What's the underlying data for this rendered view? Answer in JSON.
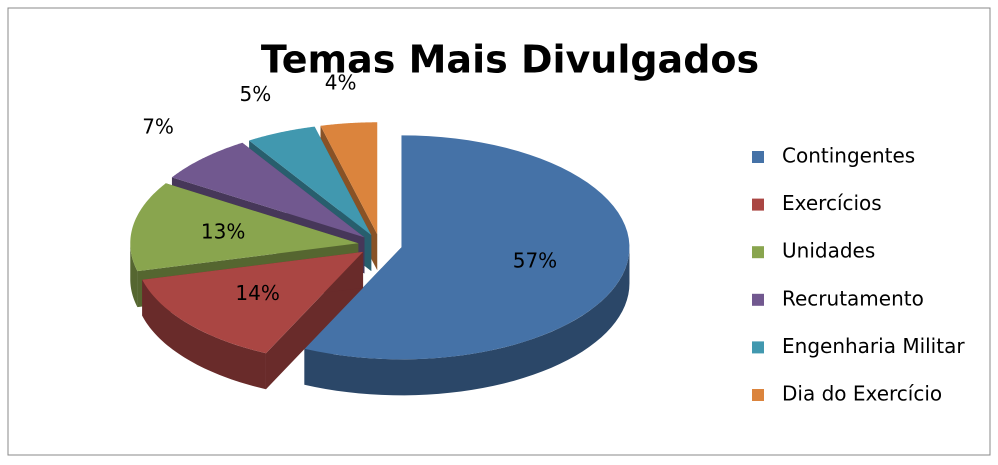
{
  "chart_data": {
    "type": "pie",
    "title": "Temas Mais Divulgados",
    "categories": [
      "Contingentes",
      "Exercícios",
      "Unidades",
      "Recrutamento",
      "Engenharia Militar",
      "Dia do Exercício"
    ],
    "values": [
      57,
      14,
      13,
      7,
      5,
      4
    ],
    "value_labels": [
      "57%",
      "14%",
      "13%",
      "7%",
      "5%",
      "4%"
    ],
    "colors": [
      "#4572a7",
      "#aa4643",
      "#89a54e",
      "#71588f",
      "#4198af",
      "#db843d"
    ],
    "legend": "right"
  }
}
